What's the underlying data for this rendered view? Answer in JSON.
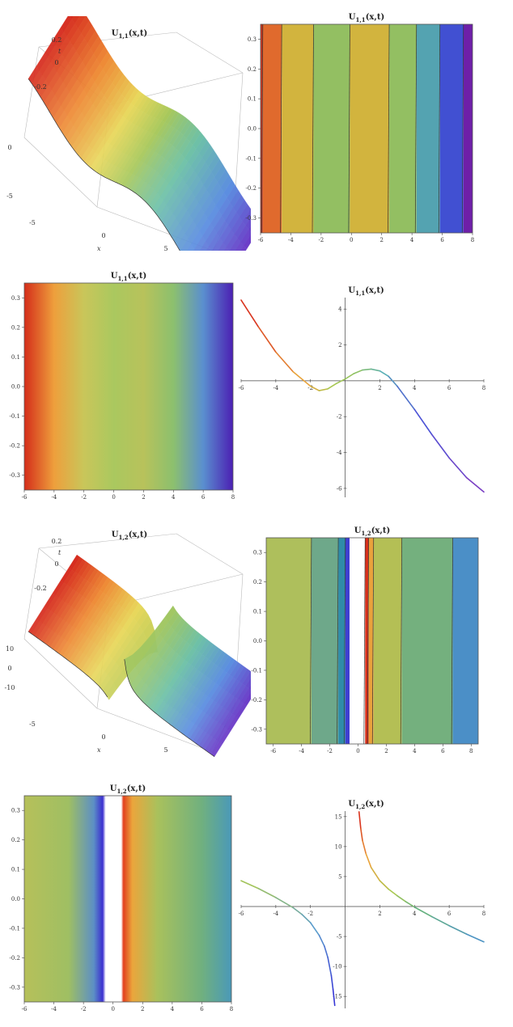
{
  "chart_data": [
    {
      "id": "u11-surface",
      "type": "area",
      "subtype": "surface3d",
      "title": "U1,1(x,t)",
      "xlabel": "x",
      "ylabel": "t",
      "x_ticks": [
        "-5",
        "0",
        "5"
      ],
      "t_ticks": [
        "0.2",
        "0",
        "-0.2"
      ],
      "z_ticks": [
        "0",
        "-5"
      ],
      "colormap": "rainbow"
    },
    {
      "id": "u11-contour",
      "type": "heatmap",
      "subtype": "contour",
      "title": "U1,1(x,t)",
      "xlim": [
        -6,
        8
      ],
      "ylim": [
        -0.35,
        0.35
      ],
      "x_ticks": [
        "-6",
        "-4",
        "-2",
        "0",
        "2",
        "4",
        "6",
        "8"
      ],
      "y_ticks": [
        "0.3",
        "0.2",
        "0.1",
        "0.0",
        "-0.1",
        "-0.2",
        "-0.3"
      ],
      "bands": [
        {
          "from": -6.0,
          "to": -5.85,
          "color": "#c8361e"
        },
        {
          "from": -5.85,
          "to": -4.6,
          "color": "#e06a2d"
        },
        {
          "from": -4.6,
          "to": -2.5,
          "color": "#d2b43e"
        },
        {
          "from": -2.5,
          "to": -0.1,
          "color": "#93bf62"
        },
        {
          "from": -0.1,
          "to": 2.5,
          "color": "#d2b43e"
        },
        {
          "from": 2.5,
          "to": 4.3,
          "color": "#93bf62"
        },
        {
          "from": 4.3,
          "to": 5.85,
          "color": "#54a3b1"
        },
        {
          "from": 5.85,
          "to": 7.4,
          "color": "#4150d2"
        },
        {
          "from": 7.4,
          "to": 8.0,
          "color": "#6e1fa8"
        }
      ]
    },
    {
      "id": "u11-density",
      "type": "heatmap",
      "subtype": "density",
      "title": "U1,1(x,t)",
      "xlim": [
        -6,
        8
      ],
      "ylim": [
        -0.35,
        0.35
      ],
      "x_ticks": [
        "-6",
        "-4",
        "-2",
        "0",
        "2",
        "4",
        "6",
        "8"
      ],
      "y_ticks": [
        "0.3",
        "0.2",
        "0.1",
        "0.0",
        "-0.1",
        "-0.2",
        "-0.3"
      ],
      "gradient": [
        {
          "x": -6,
          "color": "#d42d1a"
        },
        {
          "x": -4,
          "color": "#ee9f3c"
        },
        {
          "x": -2,
          "color": "#c9c65a"
        },
        {
          "x": 0,
          "color": "#aac85f"
        },
        {
          "x": 2,
          "color": "#b8c25b"
        },
        {
          "x": 4,
          "color": "#8cc06e"
        },
        {
          "x": 6,
          "color": "#5a8fcf"
        },
        {
          "x": 8,
          "color": "#4b1fb3"
        }
      ]
    },
    {
      "id": "u11-line",
      "type": "line",
      "title": "U1,1(x,t)",
      "xlim": [
        -6,
        8
      ],
      "ylim": [
        -6.5,
        5
      ],
      "x_ticks": [
        "-6",
        "-4",
        "-2",
        "2",
        "4",
        "6",
        "8"
      ],
      "y_ticks": [
        "4",
        "2",
        "-2",
        "-4",
        "-6"
      ],
      "x": [
        -6,
        -5,
        -4,
        -3,
        -2,
        -1.5,
        -1,
        -0.5,
        0,
        0.5,
        1,
        1.5,
        2,
        2.5,
        3,
        4,
        5,
        6,
        7,
        8
      ],
      "y": [
        4.5,
        3.0,
        1.6,
        0.5,
        -0.3,
        -0.55,
        -0.45,
        -0.15,
        0.1,
        0.4,
        0.6,
        0.65,
        0.55,
        0.25,
        -0.3,
        -1.6,
        -3.0,
        -4.3,
        -5.4,
        -6.2
      ],
      "series_colors": [
        "#d9341e",
        "#e8a33a",
        "#a9c851",
        "#8cc063",
        "#5ab0b6",
        "#4b52d6",
        "#7a3fc4"
      ]
    },
    {
      "id": "u12-surface",
      "type": "area",
      "subtype": "surface3d",
      "title": "U1,2(x,t)",
      "xlabel": "x",
      "ylabel": "t",
      "x_ticks": [
        "-5",
        "0",
        "5"
      ],
      "t_ticks": [
        "0.2",
        "0",
        "-0.2"
      ],
      "z_ticks": [
        "10",
        "0",
        "-10"
      ],
      "colormap": "rainbow"
    },
    {
      "id": "u12-contour",
      "type": "heatmap",
      "subtype": "contour",
      "title": "U1,2(x,t)",
      "xlim": [
        -6.5,
        8.5
      ],
      "ylim": [
        -0.35,
        0.35
      ],
      "x_ticks": [
        "-6",
        "-4",
        "-2",
        "0",
        "2",
        "4",
        "6",
        "8"
      ],
      "y_ticks": [
        "0.3",
        "0.2",
        "0.1",
        "0.0",
        "-0.1",
        "-0.2",
        "-0.3"
      ],
      "bands": [
        {
          "from": -6.5,
          "to": -3.3,
          "color": "#aebf5c"
        },
        {
          "from": -3.3,
          "to": -1.4,
          "color": "#6ea88a"
        },
        {
          "from": -1.4,
          "to": -0.9,
          "color": "#2f8ca8"
        },
        {
          "from": -0.9,
          "to": -0.6,
          "color": "#3f3fd1"
        },
        {
          "from": -0.6,
          "to": 0.5,
          "color": "#ffffff"
        },
        {
          "from": 0.5,
          "to": 0.75,
          "color": "#d8301c"
        },
        {
          "from": 0.75,
          "to": 1.1,
          "color": "#e9a23c"
        },
        {
          "from": 1.1,
          "to": 3.1,
          "color": "#b4bf55"
        },
        {
          "from": 3.1,
          "to": 6.7,
          "color": "#74b07e"
        },
        {
          "from": 6.7,
          "to": 8.5,
          "color": "#4b8fc7"
        }
      ]
    },
    {
      "id": "u12-density",
      "type": "heatmap",
      "subtype": "density",
      "title": "U1,2(x,t)",
      "xlim": [
        -6,
        8
      ],
      "ylim": [
        -0.35,
        0.35
      ],
      "x_ticks": [
        "-6",
        "-4",
        "-2",
        "0",
        "2",
        "4",
        "6",
        "8"
      ],
      "y_ticks": [
        "0.3",
        "0.2",
        "0.1",
        "0.0",
        "-0.1",
        "-0.2",
        "-0.3"
      ],
      "gradient": [
        {
          "x": -6,
          "color": "#b6c05a"
        },
        {
          "x": -3,
          "color": "#9fbf63"
        },
        {
          "x": -1.3,
          "color": "#5c8fc5"
        },
        {
          "x": -0.7,
          "color": "#3b2fd0"
        },
        {
          "x": -0.5,
          "color": "#ffffff"
        },
        {
          "x": 0.55,
          "color": "#ffffff"
        },
        {
          "x": 0.7,
          "color": "#e2401e"
        },
        {
          "x": 1.3,
          "color": "#eba53c"
        },
        {
          "x": 3,
          "color": "#a9c15c"
        },
        {
          "x": 6,
          "color": "#70b07f"
        },
        {
          "x": 8,
          "color": "#4a99b8"
        }
      ]
    },
    {
      "id": "u12-line",
      "type": "line",
      "title": "U1,2(x,t)",
      "xlim": [
        -6,
        8
      ],
      "ylim": [
        -17,
        17
      ],
      "x_ticks": [
        "-6",
        "-4",
        "-2",
        "2",
        "4",
        "6",
        "8"
      ],
      "y_ticks": [
        "15",
        "10",
        "5",
        "-5",
        "-10",
        "-15"
      ],
      "segments": [
        {
          "x": [
            -6,
            -5,
            -4,
            -3,
            -2.5,
            -2,
            -1.5,
            -1.2,
            -1,
            -0.8,
            -0.7,
            -0.6
          ],
          "y": [
            4.3,
            3.0,
            1.5,
            -0.2,
            -1.3,
            -2.7,
            -4.8,
            -6.6,
            -8.5,
            -11.5,
            -13.8,
            -16.5
          ]
        },
        {
          "x": [
            0.8,
            0.9,
            1,
            1.2,
            1.5,
            2,
            2.5,
            3,
            3.5,
            4,
            5,
            6,
            7,
            8
          ],
          "y": [
            15.8,
            13.0,
            11.0,
            8.8,
            6.5,
            4.3,
            2.9,
            1.8,
            0.8,
            -0.1,
            -1.7,
            -3.2,
            -4.6,
            -5.9
          ]
        }
      ],
      "series_colors": [
        "#a2c45a",
        "#5a9ccc",
        "#3636d6"
      ],
      "series_colors_2": [
        "#d9341e",
        "#e9a33a",
        "#a9c851",
        "#63b07e",
        "#4e94c3"
      ]
    }
  ]
}
